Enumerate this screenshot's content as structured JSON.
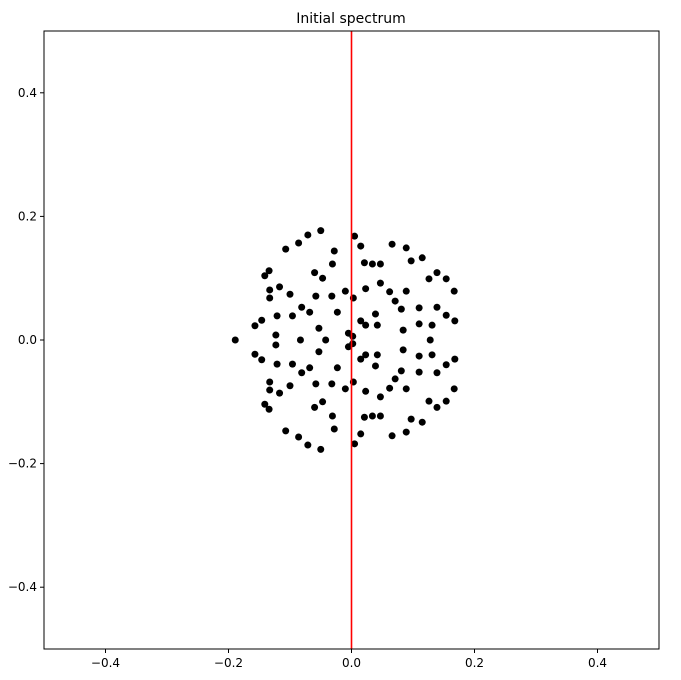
{
  "chart_data": {
    "type": "scatter",
    "title": "Initial spectrum",
    "x": [
      -0.05,
      -0.071,
      -0.086,
      -0.107,
      0.005,
      0.015,
      -0.028,
      0.066,
      0.089,
      0.115,
      0.097,
      0.021,
      0.034,
      0.047,
      -0.031,
      -0.06,
      -0.047,
      -0.134,
      -0.141,
      -0.117,
      -0.1,
      -0.133,
      -0.133,
      -0.058,
      -0.032,
      -0.01,
      0.003,
      0.047,
      0.023,
      0.071,
      0.062,
      0.081,
      0.089,
      0.126,
      0.139,
      0.154,
      0.167,
      0.139,
      0.154,
      0.168,
      0.131,
      0.11,
      0.11,
      -0.081,
      -0.068,
      -0.096,
      -0.121,
      -0.146,
      -0.157,
      -0.053,
      -0.023,
      0.015,
      0.039,
      0.042,
      0.023,
      -0.005,
      0.002,
      0.084,
      -0.123,
      -0.05,
      -0.071,
      -0.086,
      -0.107,
      0.005,
      0.015,
      -0.028,
      0.066,
      0.089,
      0.115,
      0.097,
      0.021,
      0.034,
      0.047,
      -0.031,
      -0.06,
      -0.047,
      -0.134,
      -0.141,
      -0.117,
      -0.1,
      -0.133,
      -0.133,
      -0.058,
      -0.032,
      -0.01,
      0.003,
      0.047,
      0.023,
      0.071,
      0.062,
      0.081,
      0.089,
      0.126,
      0.139,
      0.154,
      0.167,
      0.139,
      0.154,
      0.168,
      0.131,
      0.11,
      0.11,
      -0.081,
      -0.068,
      -0.096,
      -0.121,
      -0.146,
      -0.157,
      -0.053,
      -0.023,
      0.015,
      0.039,
      0.042,
      0.023,
      -0.005,
      0.002,
      0.084,
      -0.123,
      -0.083,
      -0.042,
      0.128,
      -0.189
    ],
    "y": [
      0.177,
      0.17,
      0.157,
      0.147,
      0.168,
      0.152,
      0.144,
      0.155,
      0.149,
      0.133,
      0.128,
      0.125,
      0.123,
      0.123,
      0.123,
      0.109,
      0.1,
      0.112,
      0.104,
      0.086,
      0.074,
      0.081,
      0.068,
      0.071,
      0.071,
      0.079,
      0.068,
      0.092,
      0.083,
      0.063,
      0.078,
      0.05,
      0.079,
      0.099,
      0.109,
      0.099,
      0.079,
      0.053,
      0.04,
      0.031,
      0.024,
      0.052,
      0.026,
      0.053,
      0.045,
      0.039,
      0.039,
      0.032,
      0.023,
      0.019,
      0.045,
      0.031,
      0.042,
      0.024,
      0.024,
      0.011,
      0.006,
      0.016,
      0.008,
      -0.177,
      -0.17,
      -0.157,
      -0.147,
      -0.168,
      -0.152,
      -0.144,
      -0.155,
      -0.149,
      -0.133,
      -0.128,
      -0.125,
      -0.123,
      -0.123,
      -0.123,
      -0.109,
      -0.1,
      -0.112,
      -0.104,
      -0.086,
      -0.074,
      -0.081,
      -0.068,
      -0.071,
      -0.071,
      -0.079,
      -0.068,
      -0.092,
      -0.083,
      -0.063,
      -0.078,
      -0.05,
      -0.079,
      -0.099,
      -0.109,
      -0.099,
      -0.079,
      -0.053,
      -0.04,
      -0.031,
      -0.024,
      -0.052,
      -0.026,
      -0.053,
      -0.045,
      -0.039,
      -0.039,
      -0.032,
      -0.023,
      -0.019,
      -0.045,
      -0.031,
      -0.042,
      -0.024,
      -0.024,
      -0.011,
      -0.006,
      -0.016,
      -0.008,
      0,
      0,
      0,
      0
    ],
    "color": "#000000",
    "vline": 0,
    "vline_color": "#ff0000",
    "xlim": [
      -0.5,
      0.5
    ],
    "ylim": [
      -0.5,
      0.5
    ],
    "xticks": [
      {
        "value": -0.4,
        "label": "−0.4"
      },
      {
        "value": -0.2,
        "label": "−0.2"
      },
      {
        "value": 0,
        "label": "0.0"
      },
      0.2,
      0.4
    ],
    "yticks": [
      {
        "value": -0.4,
        "label": "−0.4"
      },
      {
        "value": -0.2,
        "label": "−0.2"
      },
      {
        "value": 0,
        "label": "0.0"
      },
      0.2,
      0.4
    ]
  }
}
